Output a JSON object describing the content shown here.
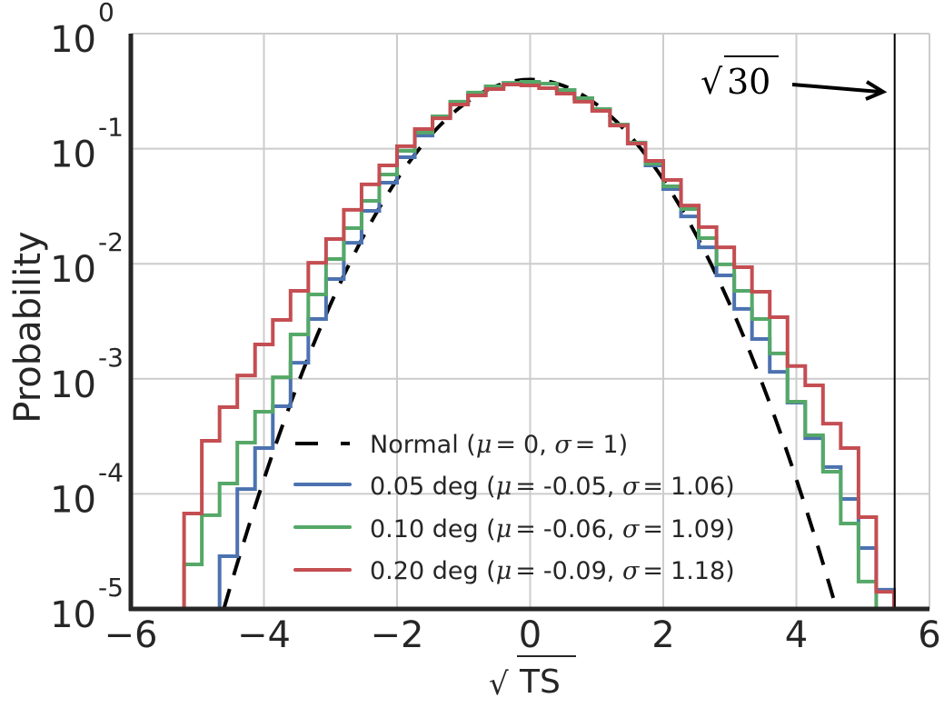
{
  "chart_data": {
    "type": "line",
    "subtype": "step-histogram",
    "title": "",
    "xlabel": "√TS",
    "ylabel": "Probability",
    "xlim": [
      -6,
      6
    ],
    "ylim": [
      1e-05,
      1
    ],
    "yscale": "log",
    "grid": true,
    "x_ticks": [
      -6,
      -4,
      -2,
      0,
      2,
      4,
      6
    ],
    "x_tick_labels": [
      "−6",
      "−4",
      "−2",
      "0",
      "2",
      "4",
      "6"
    ],
    "y_ticks": [
      1,
      0.1,
      0.01,
      0.001,
      0.0001,
      1e-05
    ],
    "y_tick_labels": [
      {
        "base": "10",
        "exp": "0"
      },
      {
        "base": "10",
        "exp": "-1"
      },
      {
        "base": "10",
        "exp": "-2"
      },
      {
        "base": "10",
        "exp": "-3"
      },
      {
        "base": "10",
        "exp": "-4"
      },
      {
        "base": "10",
        "exp": "-5"
      }
    ],
    "legend_position": "lower-center",
    "bin_start": -5.2,
    "bin_width": 0.26667,
    "normal": {
      "name": "Normal",
      "label_prefix": "Normal (",
      "mu_text": "0",
      "sigma_text": "1",
      "mu": 0,
      "sigma": 1,
      "x_range": [
        -4.7,
        4.7
      ],
      "color": "#000000",
      "style": "dashed"
    },
    "series": [
      {
        "name": "0.05 deg",
        "mu_text": "-0.05",
        "sigma_text": "1.06",
        "color": "#4c72b0",
        "first_bin": 2,
        "values": [
          2.87e-05,
          0.00011,
          0.00025,
          0.000577,
          0.00138,
          0.00331,
          0.00736,
          0.0152,
          0.0288,
          0.0507,
          0.0843,
          0.13,
          0.187,
          0.251,
          0.301,
          0.348,
          0.368,
          0.374,
          0.368,
          0.324,
          0.275,
          0.221,
          0.162,
          0.111,
          0.0716,
          0.0446,
          0.0258,
          0.0139,
          0.00793,
          0.00405,
          0.00222,
          0.00115,
          0.000621,
          0.000305,
          0.000171,
          9.04e-05,
          3.38e-05,
          1.47e-05
        ]
      },
      {
        "name": "0.10 deg",
        "mu_text": "-0.06",
        "sigma_text": "1.09",
        "color": "#55a868",
        "first_bin": 0,
        "values": [
          2.44e-05,
          6.52e-05,
          0.000123,
          0.000279,
          0.000518,
          0.00103,
          0.00243,
          0.00541,
          0.011,
          0.0204,
          0.0352,
          0.0597,
          0.0958,
          0.138,
          0.191,
          0.256,
          0.307,
          0.348,
          0.374,
          0.381,
          0.368,
          0.324,
          0.275,
          0.221,
          0.162,
          0.113,
          0.0741,
          0.0471,
          0.0299,
          0.0167,
          0.00987,
          0.00582,
          0.00331,
          0.00166,
          0.000632,
          0.000323,
          0.000156,
          5.53e-05,
          1.73e-05
        ]
      },
      {
        "name": "0.20 deg",
        "mu_text": "-0.09",
        "sigma_text": "1.18",
        "color": "#c44e52",
        "first_bin": 0,
        "values": [
          6.75e-05,
          0.000289,
          0.000567,
          0.00107,
          0.00199,
          0.00325,
          0.00582,
          0.0102,
          0.0164,
          0.0294,
          0.0489,
          0.0716,
          0.105,
          0.148,
          0.184,
          0.242,
          0.29,
          0.33,
          0.361,
          0.355,
          0.336,
          0.301,
          0.256,
          0.213,
          0.159,
          0.111,
          0.0783,
          0.0535,
          0.0321,
          0.0208,
          0.0139,
          0.00933,
          0.00571,
          0.00343,
          0.00129,
          0.000877,
          0.000408,
          0.00025,
          6.28e-05,
          1.41e-05
        ]
      }
    ],
    "legend_mu_symbol": "μ",
    "legend_sigma_symbol": "σ",
    "legend_eq": "=",
    "annotation": {
      "text": "√30",
      "radicand": "30",
      "vline_x": 5.477,
      "color": "#000000"
    }
  }
}
